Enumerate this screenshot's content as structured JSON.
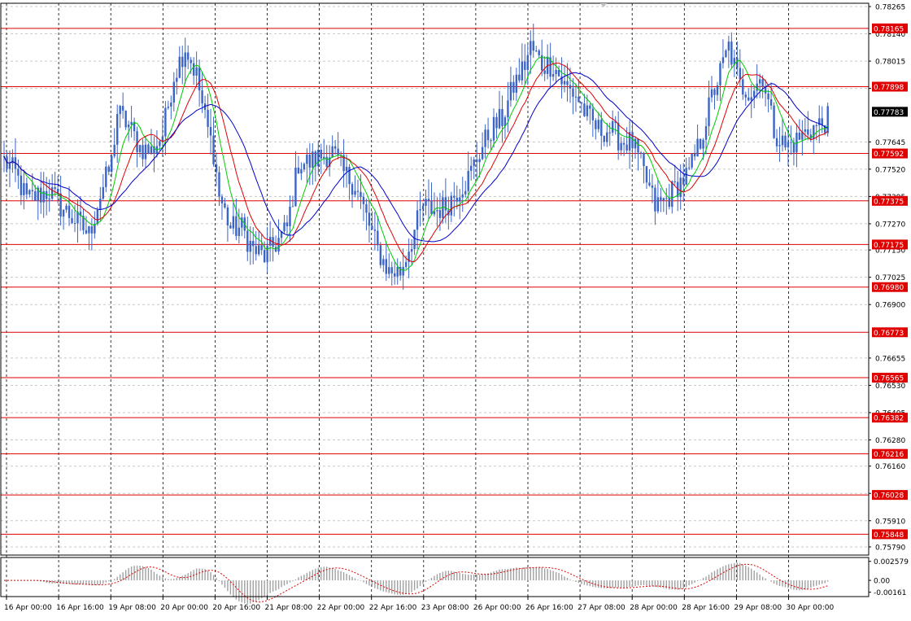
{
  "chart_data": {
    "type": "candlestick",
    "symbol_hint": "",
    "y_range": [
      0.7576,
      0.7828
    ],
    "price_ticks": [
      "0.78265",
      "0.78140",
      "0.78015",
      "0.77890",
      "0.77645",
      "0.77520",
      "0.77395",
      "0.77270",
      "0.77150",
      "0.77025",
      "0.76900",
      "0.76655",
      "0.76530",
      "0.76405",
      "0.76280",
      "0.76160",
      "0.76035",
      "0.75910",
      "0.75790"
    ],
    "price_tick_values": [
      0.78265,
      0.7814,
      0.78015,
      0.7789,
      0.77645,
      0.7752,
      0.77395,
      0.7727,
      0.7715,
      0.77025,
      0.769,
      0.76655,
      0.7653,
      0.76405,
      0.7628,
      0.7616,
      0.76035,
      0.7591,
      0.7579
    ],
    "levels": [
      {
        "label": "0.78165",
        "value": 0.78165
      },
      {
        "label": "0.77898",
        "value": 0.77898
      },
      {
        "label": "0.77592",
        "value": 0.77592
      },
      {
        "label": "0.77375",
        "value": 0.77375
      },
      {
        "label": "0.77175",
        "value": 0.77175
      },
      {
        "label": "0.76980",
        "value": 0.7698
      },
      {
        "label": "0.76773",
        "value": 0.76773
      },
      {
        "label": "0.76565",
        "value": 0.76565
      },
      {
        "label": "0.76382",
        "value": 0.76382
      },
      {
        "label": "0.76216",
        "value": 0.76216
      },
      {
        "label": "0.76028",
        "value": 0.76028
      },
      {
        "label": "0.75848",
        "value": 0.75848
      }
    ],
    "current_price": {
      "label": "0.77783",
      "value": 0.77783
    },
    "time_labels": [
      "16 Apr 00:00",
      "16 Apr 16:00",
      "19 Apr 08:00",
      "20 Apr 00:00",
      "20 Apr 16:00",
      "21 Apr 08:00",
      "22 Apr 00:00",
      "22 Apr 16:00",
      "23 Apr 08:00",
      "26 Apr 00:00",
      "26 Apr 16:00",
      "27 Apr 08:00",
      "28 Apr 00:00",
      "28 Apr 16:00",
      "29 Apr 08:00",
      "30 Apr 00:00"
    ],
    "close_anchors": [
      [
        0,
        0.7756
      ],
      [
        4,
        0.775
      ],
      [
        8,
        0.7738
      ],
      [
        12,
        0.774
      ],
      [
        16,
        0.7742
      ],
      [
        20,
        0.7735
      ],
      [
        24,
        0.773
      ],
      [
        28,
        0.7725
      ],
      [
        30,
        0.7722
      ],
      [
        34,
        0.774
      ],
      [
        38,
        0.7755
      ],
      [
        40,
        0.7778
      ],
      [
        44,
        0.7772
      ],
      [
        48,
        0.7762
      ],
      [
        52,
        0.776
      ],
      [
        56,
        0.7768
      ],
      [
        60,
        0.7795
      ],
      [
        64,
        0.7808
      ],
      [
        68,
        0.7795
      ],
      [
        71,
        0.7775
      ],
      [
        74,
        0.776
      ],
      [
        76,
        0.774
      ],
      [
        80,
        0.7725
      ],
      [
        84,
        0.7725
      ],
      [
        88,
        0.7715
      ],
      [
        92,
        0.7712
      ],
      [
        96,
        0.7718
      ],
      [
        100,
        0.7725
      ],
      [
        104,
        0.7755
      ],
      [
        108,
        0.7755
      ],
      [
        112,
        0.7758
      ],
      [
        116,
        0.776
      ],
      [
        120,
        0.775
      ],
      [
        124,
        0.7745
      ],
      [
        128,
        0.773
      ],
      [
        132,
        0.7715
      ],
      [
        136,
        0.7705
      ],
      [
        140,
        0.7705
      ],
      [
        144,
        0.772
      ],
      [
        148,
        0.7735
      ],
      [
        152,
        0.7733
      ],
      [
        156,
        0.7735
      ],
      [
        160,
        0.7742
      ],
      [
        164,
        0.7748
      ],
      [
        168,
        0.776
      ],
      [
        172,
        0.777
      ],
      [
        176,
        0.7775
      ],
      [
        180,
        0.779
      ],
      [
        184,
        0.78
      ],
      [
        186,
        0.7808
      ],
      [
        190,
        0.78
      ],
      [
        194,
        0.78
      ],
      [
        198,
        0.779
      ],
      [
        202,
        0.7786
      ],
      [
        206,
        0.7776
      ],
      [
        210,
        0.777
      ],
      [
        214,
        0.777
      ],
      [
        218,
        0.7765
      ],
      [
        222,
        0.7764
      ],
      [
        226,
        0.775
      ],
      [
        230,
        0.7735
      ],
      [
        234,
        0.7738
      ],
      [
        238,
        0.7745
      ],
      [
        242,
        0.775
      ],
      [
        246,
        0.7765
      ],
      [
        250,
        0.7785
      ],
      [
        254,
        0.78
      ],
      [
        256,
        0.7808
      ],
      [
        260,
        0.779
      ],
      [
        264,
        0.7788
      ],
      [
        268,
        0.7795
      ],
      [
        272,
        0.777
      ],
      [
        276,
        0.7762
      ],
      [
        280,
        0.7765
      ],
      [
        284,
        0.777
      ],
      [
        288,
        0.7772
      ],
      [
        291,
        0.7775
      ]
    ],
    "indicators": {
      "ma_fast_color": "#00cc00",
      "ma_mid_color": "#e00000",
      "ma_slow_color": "#0000cc"
    },
    "oscillator": {
      "ticks": [
        "0.002579",
        "0.00",
        "-0.00161"
      ],
      "tick_values": [
        0.002579,
        0.0,
        -0.00161
      ],
      "range": [
        -0.0022,
        0.0031
      ],
      "bar_color": "#a0a0a0",
      "line_color": "#e00000"
    },
    "colors": {
      "candle": "#3b64c7",
      "level_line": "#e00000",
      "level_label_bg": "#e00000",
      "level_label_text": "#ffffff",
      "current_label_bg": "#000000",
      "grid": "#c8c8c8"
    }
  }
}
